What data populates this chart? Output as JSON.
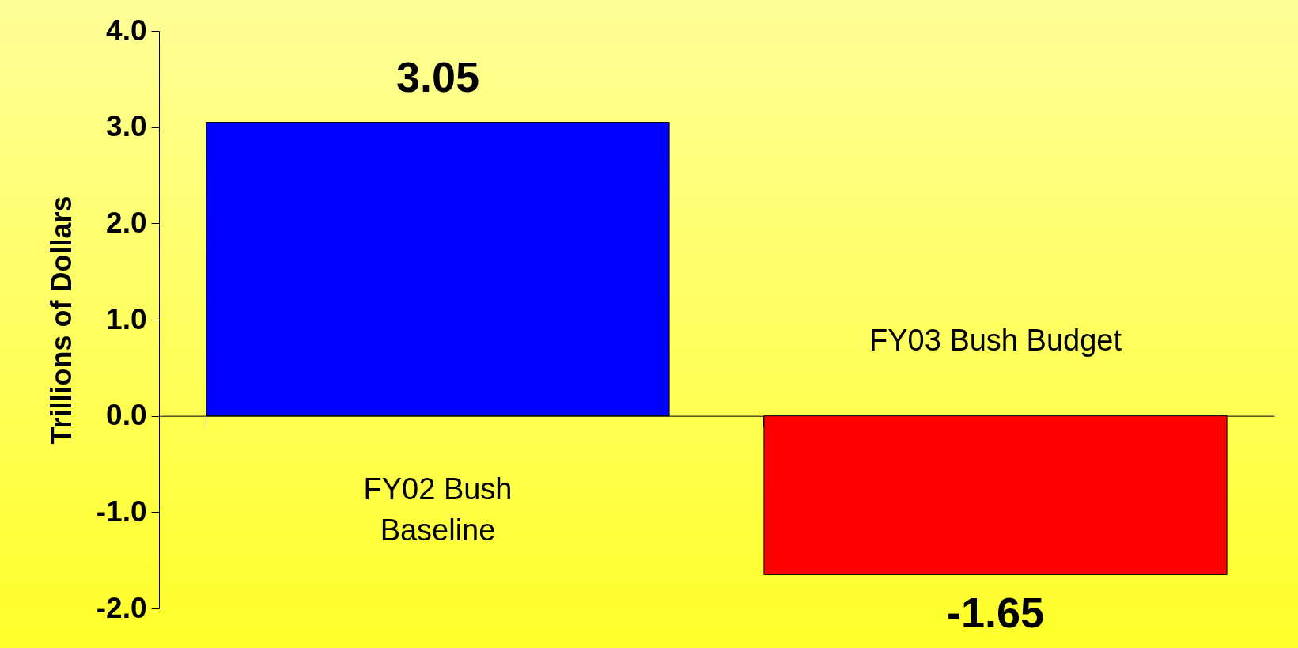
{
  "chart_data": {
    "type": "bar",
    "categories": [
      "FY02 Bush Baseline",
      "FY03 Bush Budget"
    ],
    "values": [
      3.05,
      -1.65
    ],
    "colors": [
      "#0000ff",
      "#ff0000"
    ],
    "ylabel": "Trillions of Dollars",
    "ylim": [
      -2,
      4
    ],
    "yticks": [
      {
        "value": -2,
        "label": "-2.0"
      },
      {
        "value": -1,
        "label": "-1.0"
      },
      {
        "value": 0,
        "label": "0.0"
      },
      {
        "value": 1,
        "label": "1.0"
      },
      {
        "value": 2,
        "label": "2.0"
      },
      {
        "value": 3,
        "label": "3.0"
      },
      {
        "value": 4,
        "label": "4.0"
      }
    ],
    "data_labels": true
  }
}
